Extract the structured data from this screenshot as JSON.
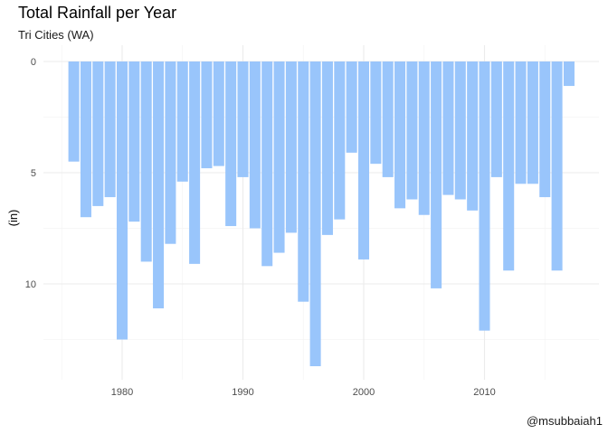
{
  "title": "Total Rainfall per Year",
  "subtitle": "Tri Cities (WA)",
  "caption": "@msubbaiah1",
  "chart_data": {
    "type": "bar",
    "orientation": "vertical",
    "y_reversed": true,
    "title": "Total Rainfall per Year",
    "subtitle": "Tri Cities (WA)",
    "xlabel": "",
    "ylabel": "(in)",
    "x_ticks": [
      1980,
      1990,
      2000,
      2010
    ],
    "y_ticks": [
      0,
      5,
      10
    ],
    "ylim": [
      0,
      14
    ],
    "grid": true,
    "bar_color": "#99c5fb",
    "grid_major_color": "#ebebeb",
    "grid_minor_color": "#f4f4f4",
    "categories": [
      1976,
      1977,
      1978,
      1979,
      1980,
      1981,
      1982,
      1983,
      1984,
      1985,
      1986,
      1987,
      1988,
      1989,
      1990,
      1991,
      1992,
      1993,
      1994,
      1995,
      1996,
      1997,
      1998,
      1999,
      2000,
      2001,
      2002,
      2003,
      2004,
      2005,
      2006,
      2007,
      2008,
      2009,
      2010,
      2011,
      2012,
      2013,
      2014,
      2015,
      2016,
      2017
    ],
    "values": [
      4.5,
      7.0,
      6.5,
      6.1,
      12.5,
      7.2,
      9.0,
      11.1,
      8.2,
      5.4,
      9.1,
      4.8,
      4.7,
      7.4,
      5.2,
      7.5,
      9.2,
      8.6,
      7.7,
      10.8,
      13.7,
      7.8,
      7.1,
      4.1,
      8.9,
      4.6,
      5.2,
      6.6,
      6.2,
      6.9,
      10.2,
      6.0,
      6.2,
      6.7,
      12.1,
      5.2,
      9.4,
      5.5,
      5.5,
      6.1,
      9.4,
      1.1
    ]
  }
}
